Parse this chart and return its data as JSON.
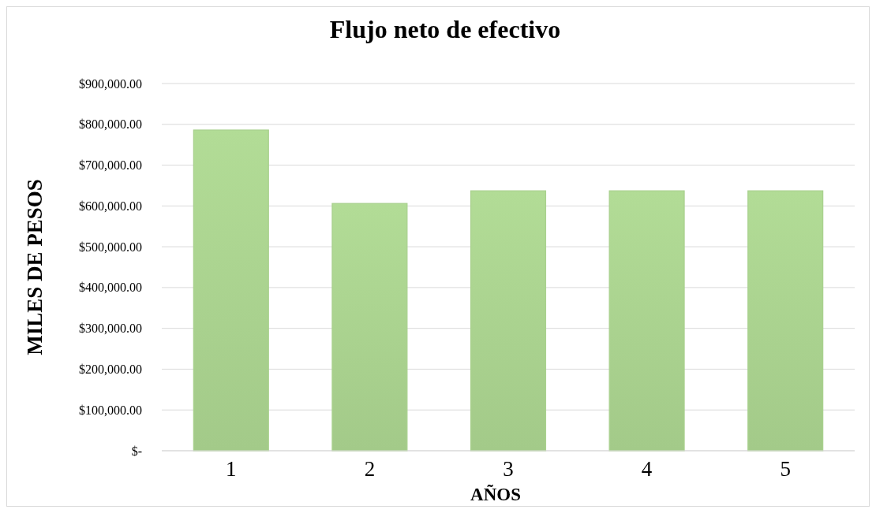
{
  "chart_data": {
    "type": "bar",
    "title": "Flujo neto de efectivo",
    "xlabel": "AÑOS",
    "ylabel": "MILES DE PESOS",
    "categories": [
      "1",
      "2",
      "3",
      "4",
      "5"
    ],
    "values": [
      786000,
      606000,
      637000,
      637000,
      637000
    ],
    "color": "#a9d18e",
    "ylim": [
      0,
      900000
    ],
    "yticks": [
      {
        "value": 0,
        "label": "$-"
      },
      {
        "value": 100000,
        "label": "$100,000.00"
      },
      {
        "value": 200000,
        "label": "$200,000.00"
      },
      {
        "value": 300000,
        "label": "$300,000.00"
      },
      {
        "value": 400000,
        "label": "$400,000.00"
      },
      {
        "value": 500000,
        "label": "$500,000.00"
      },
      {
        "value": 600000,
        "label": "$600,000.00"
      },
      {
        "value": 700000,
        "label": "$700,000.00"
      },
      {
        "value": 800000,
        "label": "$800,000.00"
      },
      {
        "value": 900000,
        "label": "$900,000.00"
      }
    ],
    "grid": "y"
  }
}
